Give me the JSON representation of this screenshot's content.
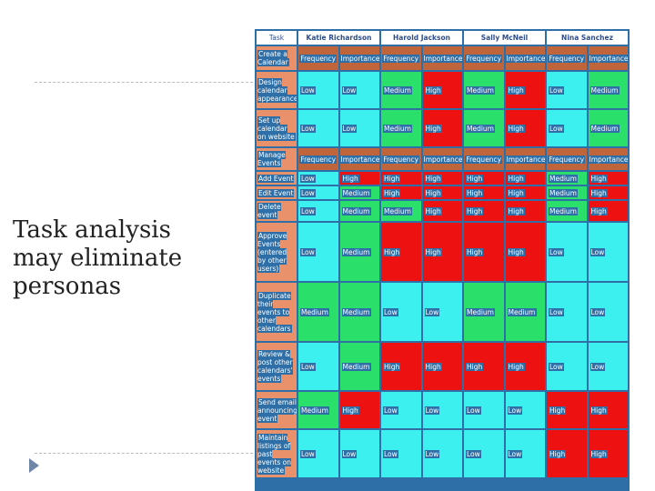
{
  "caption": [
    "Task analysis",
    "may eliminate",
    "personas"
  ],
  "table": {
    "task_header": "Task",
    "personas": [
      "Katie Richardson",
      "Harold Jackson",
      "Sally McNeil",
      "Nina Sanchez"
    ],
    "subheaders": [
      "Frequency",
      "Importance"
    ],
    "rows": [
      {
        "kind": "section",
        "task": "Create a Calendar",
        "height": 26
      },
      {
        "kind": "data",
        "task": "Design calendar appearance",
        "height": 40,
        "values": [
          "Low",
          "Low",
          "Medium",
          "High",
          "Medium",
          "High",
          "Low",
          "Medium"
        ]
      },
      {
        "kind": "data",
        "task": "Set up calendar on website",
        "height": 40,
        "values": [
          "Low",
          "Low",
          "Medium",
          "High",
          "Medium",
          "High",
          "Low",
          "Medium"
        ]
      },
      {
        "kind": "section",
        "task": "Manage Events",
        "height": 24
      },
      {
        "kind": "data",
        "task": "Add Event",
        "height": 14,
        "values": [
          "Low",
          "High",
          "High",
          "High",
          "High",
          "High",
          "Medium",
          "High"
        ]
      },
      {
        "kind": "data",
        "task": "Edit Event",
        "height": 14,
        "values": [
          "Low",
          "Medium",
          "High",
          "High",
          "High",
          "High",
          "Medium",
          "High"
        ]
      },
      {
        "kind": "data",
        "task": "Delete event",
        "height": 22,
        "values": [
          "Low",
          "Medium",
          "Medium",
          "High",
          "High",
          "High",
          "Medium",
          "High"
        ]
      },
      {
        "kind": "data",
        "task": "Approve Events (entered by other users)",
        "height": 64,
        "values": [
          "Low",
          "Medium",
          "High",
          "High",
          "High",
          "High",
          "Low",
          "Low"
        ]
      },
      {
        "kind": "data",
        "task": "Duplicate their events to other calendars",
        "height": 64,
        "values": [
          "Medium",
          "Medium",
          "Low",
          "Low",
          "Medium",
          "Medium",
          "Low",
          "Low"
        ]
      },
      {
        "kind": "data",
        "task": "Review & post other calendars' events",
        "height": 52,
        "values": [
          "Low",
          "Medium",
          "High",
          "High",
          "High",
          "High",
          "Low",
          "Low"
        ]
      },
      {
        "kind": "data",
        "task": "Send email announcing event",
        "height": 40,
        "values": [
          "Medium",
          "High",
          "Low",
          "Low",
          "Low",
          "Low",
          "High",
          "High"
        ]
      },
      {
        "kind": "data",
        "task": "Maintain listings of past events on website",
        "height": 52,
        "values": [
          "Low",
          "Low",
          "Low",
          "Low",
          "Low",
          "Low",
          "High",
          "High"
        ]
      }
    ]
  },
  "colors": {
    "Low": "#3cf0f0",
    "Medium": "#2ae06a",
    "High": "#ee1111",
    "task_bg": "#e8916a",
    "border": "#2e6fa8"
  }
}
